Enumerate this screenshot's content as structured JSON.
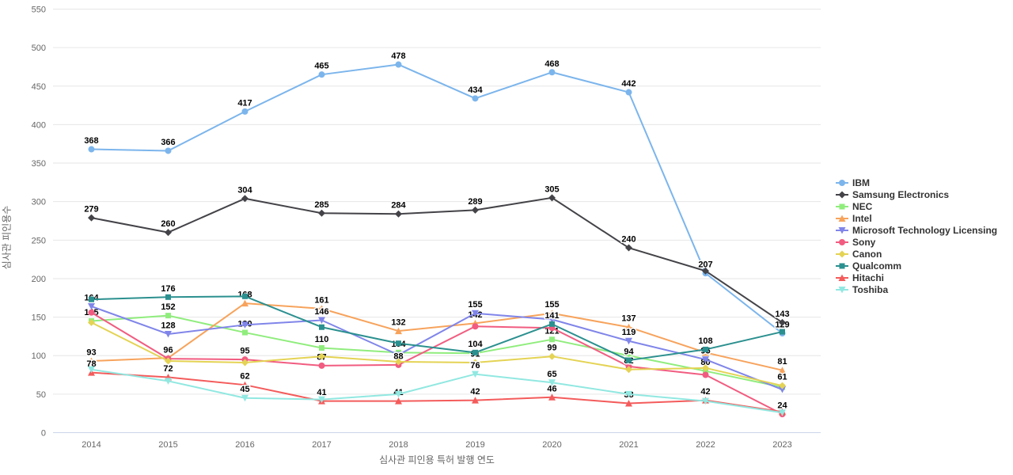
{
  "chart_data": {
    "type": "line",
    "title": "",
    "xlabel": "심사관 피인용 특허 발행 연도",
    "ylabel": "심사관 피인용수",
    "x_categories": [
      "2014",
      "2015",
      "2016",
      "2017",
      "2018",
      "2019",
      "2020",
      "2021",
      "2022",
      "2023"
    ],
    "ylim": [
      0,
      550
    ],
    "y_tick_interval": 50,
    "grid": true,
    "legend_position": "right",
    "grid_color": "#e6e6e6",
    "axis_line_color": "#ccd6eb",
    "series": [
      {
        "name": "IBM",
        "color": "#7cb5ec",
        "symbol": "circle",
        "values": [
          368,
          366,
          417,
          465,
          478,
          434,
          468,
          442,
          207,
          129
        ],
        "point_labels": [
          368,
          366,
          417,
          465,
          478,
          434,
          468,
          442,
          207,
          129
        ]
      },
      {
        "name": "Samsung Electronics",
        "color": "#434348",
        "symbol": "diamond",
        "values": [
          279,
          260,
          304,
          285,
          284,
          289,
          305,
          240,
          210,
          143
        ],
        "point_labels": [
          279,
          260,
          304,
          285,
          284,
          289,
          305,
          240,
          null,
          143
        ]
      },
      {
        "name": "NEC",
        "color": "#90ed7d",
        "symbol": "square",
        "values": [
          145,
          152,
          130,
          110,
          104,
          103,
          121,
          100,
          80,
          59
        ],
        "point_labels": [
          145,
          152,
          130,
          110,
          104,
          null,
          121,
          null,
          80,
          null
        ]
      },
      {
        "name": "Intel",
        "color": "#f7a35c",
        "symbol": "triangle",
        "values": [
          93,
          97,
          168,
          161,
          132,
          142,
          155,
          137,
          104,
          81
        ],
        "point_labels": [
          93,
          null,
          168,
          161,
          132,
          142,
          155,
          137,
          null,
          81
        ]
      },
      {
        "name": "Microsoft Technology Licensing",
        "color": "#8085e9",
        "symbol": "triangle-down",
        "values": [
          164,
          128,
          140,
          146,
          101,
          155,
          147,
          119,
          95,
          56
        ],
        "point_labels": [
          164,
          128,
          null,
          146,
          null,
          155,
          null,
          119,
          95,
          null
        ]
      },
      {
        "name": "Sony",
        "color": "#f15c80",
        "symbol": "circle",
        "values": [
          156,
          96,
          95,
          87,
          88,
          138,
          136,
          86,
          75,
          24
        ],
        "point_labels": [
          null,
          96,
          95,
          87,
          88,
          null,
          null,
          null,
          null,
          24
        ]
      },
      {
        "name": "Canon",
        "color": "#e4d354",
        "symbol": "diamond",
        "values": [
          143,
          93,
          91,
          99,
          92,
          91,
          99,
          82,
          84,
          61
        ],
        "point_labels": [
          null,
          null,
          null,
          null,
          null,
          91,
          99,
          82,
          null,
          61
        ]
      },
      {
        "name": "Qualcomm",
        "color": "#2b908f",
        "symbol": "square",
        "values": [
          173,
          176,
          177,
          137,
          116,
          104,
          141,
          94,
          108,
          131
        ],
        "point_labels": [
          null,
          176,
          null,
          null,
          null,
          104,
          141,
          94,
          108,
          null
        ]
      },
      {
        "name": "Hitachi",
        "color": "#f45b5b",
        "symbol": "triangle",
        "values": [
          78,
          72,
          62,
          41,
          41,
          42,
          46,
          38,
          42,
          27
        ],
        "point_labels": [
          78,
          72,
          62,
          41,
          41,
          42,
          46,
          38,
          42,
          null
        ]
      },
      {
        "name": "Toshiba",
        "color": "#91e8e1",
        "symbol": "triangle-down",
        "values": [
          82,
          67,
          45,
          43,
          50,
          76,
          65,
          50,
          41,
          26
        ],
        "point_labels": [
          null,
          null,
          45,
          null,
          null,
          76,
          65,
          null,
          null,
          null
        ]
      }
    ]
  }
}
